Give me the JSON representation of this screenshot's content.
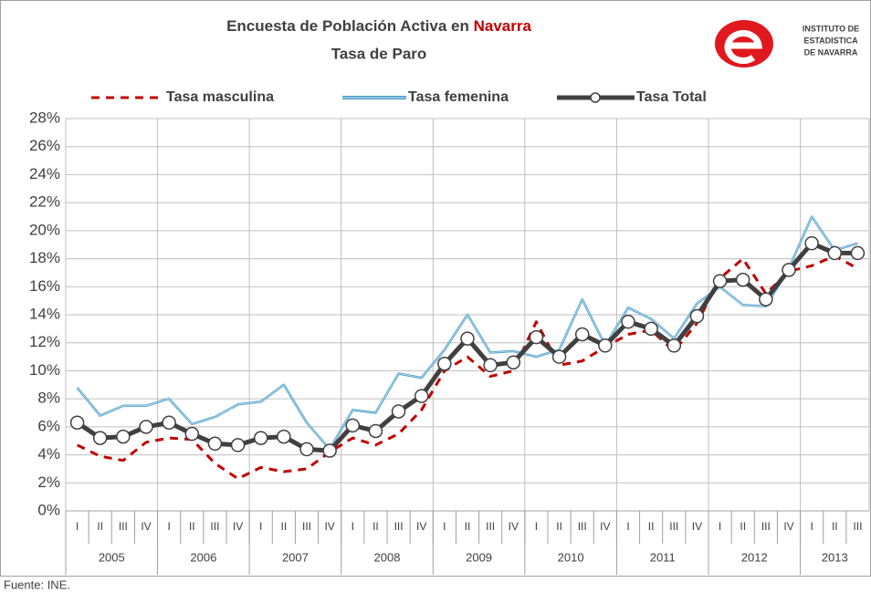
{
  "chart_data": {
    "type": "line",
    "title": "Encuesta de Población Activa en ",
    "title_highlight": "Navarra",
    "subtitle": "Tasa de Paro",
    "logo": [
      "INSTITUTO DE",
      "ESTADISTICA",
      "DE NAVARRA"
    ],
    "source": "Fuente: INE.",
    "categories": [
      "I",
      "II",
      "III",
      "IV",
      "I",
      "II",
      "III",
      "IV",
      "I",
      "II",
      "III",
      "IV",
      "I",
      "II",
      "III",
      "IV",
      "I",
      "II",
      "III",
      "IV",
      "I",
      "II",
      "III",
      "IV",
      "I",
      "II",
      "III",
      "IV",
      "I",
      "II",
      "III",
      "IV",
      "I",
      "II",
      "III"
    ],
    "years": [
      "2005",
      "2006",
      "2007",
      "2008",
      "2009",
      "2010",
      "2011",
      "2012",
      "2013"
    ],
    "series": [
      {
        "name": "Tasa masculina",
        "color": "#c00000",
        "style": "dashed",
        "values": [
          4.7,
          3.9,
          3.6,
          4.9,
          5.2,
          5.1,
          3.4,
          2.3,
          3.1,
          2.8,
          3.0,
          4.2,
          5.2,
          4.7,
          5.5,
          7.2,
          10.0,
          11.0,
          9.6,
          10.0,
          13.5,
          10.4,
          10.7,
          11.7,
          12.6,
          12.9,
          11.4,
          13.4,
          16.6,
          18.0,
          15.5,
          17.1,
          17.5,
          18.2,
          17.3
        ]
      },
      {
        "name": "Tasa femenina",
        "color": "#4a9cc8",
        "style": "solid",
        "values": [
          8.8,
          6.8,
          7.5,
          7.5,
          8.0,
          6.2,
          6.7,
          7.6,
          7.8,
          9.0,
          6.3,
          4.4,
          7.2,
          7.0,
          9.8,
          9.5,
          11.5,
          14.0,
          11.3,
          11.4,
          11.0,
          11.5,
          15.1,
          11.8,
          14.5,
          13.7,
          12.3,
          14.8,
          16.0,
          14.7,
          14.6,
          17.3,
          21.0,
          18.6,
          19.1
        ]
      },
      {
        "name": "Tasa Total",
        "color": "#404040",
        "style": "markers",
        "values": [
          6.3,
          5.2,
          5.3,
          6.0,
          6.3,
          5.5,
          4.8,
          4.7,
          5.2,
          5.3,
          4.4,
          4.3,
          6.1,
          5.7,
          7.1,
          8.2,
          10.5,
          12.3,
          10.4,
          10.6,
          12.4,
          11.0,
          12.6,
          11.8,
          13.5,
          13.0,
          11.8,
          13.9,
          16.4,
          16.5,
          15.1,
          17.2,
          19.1,
          18.4,
          18.4
        ]
      }
    ],
    "ylim": [
      0,
      28
    ],
    "yticks": [
      {
        "value": 0,
        "label": "0%"
      },
      {
        "value": 2,
        "label": "2%"
      },
      {
        "value": 4,
        "label": "4%"
      },
      {
        "value": 6,
        "label": "6%"
      },
      {
        "value": 8,
        "label": "8%"
      },
      {
        "value": 10,
        "label": "10%"
      },
      {
        "value": 12,
        "label": "12%"
      },
      {
        "value": 14,
        "label": "14%"
      },
      {
        "value": 16,
        "label": "16%"
      },
      {
        "value": 18,
        "label": "18%"
      },
      {
        "value": 20,
        "label": "20%"
      },
      {
        "value": 22,
        "label": "22%"
      },
      {
        "value": 24,
        "label": "24%"
      },
      {
        "value": 26,
        "label": "26%"
      },
      {
        "value": 28,
        "label": "28%"
      }
    ],
    "grid": true
  }
}
